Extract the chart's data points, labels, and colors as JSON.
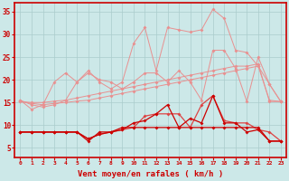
{
  "x": [
    0,
    1,
    2,
    3,
    4,
    5,
    6,
    7,
    8,
    9,
    10,
    11,
    12,
    13,
    14,
    15,
    16,
    17,
    18,
    19,
    20,
    21,
    22,
    23
  ],
  "line_top": [
    15.5,
    13.5,
    14.5,
    19.5,
    21.5,
    19.5,
    22.0,
    19.5,
    18.0,
    19.5,
    28.0,
    31.5,
    22.0,
    31.5,
    31.0,
    30.5,
    31.0,
    35.5,
    33.5,
    26.5,
    26.0,
    23.0,
    19.0,
    15.2
  ],
  "line_mid": [
    15.5,
    14.5,
    14.0,
    14.5,
    15.5,
    19.5,
    21.5,
    20.0,
    19.5,
    18.0,
    19.5,
    21.5,
    21.5,
    19.5,
    22.0,
    19.5,
    15.5,
    26.5,
    26.5,
    22.5,
    15.2,
    25.0,
    19.0,
    15.2
  ],
  "line_diag1": [
    15.2,
    15.0,
    15.0,
    15.3,
    15.5,
    16.0,
    16.5,
    17.0,
    17.5,
    18.0,
    18.5,
    19.0,
    19.5,
    20.0,
    20.5,
    21.0,
    21.5,
    22.0,
    22.5,
    23.0,
    23.0,
    23.5,
    15.2,
    15.2
  ],
  "line_diag2": [
    15.2,
    14.8,
    14.5,
    14.8,
    15.0,
    15.3,
    15.5,
    16.0,
    16.5,
    17.0,
    17.5,
    18.0,
    18.5,
    19.0,
    19.5,
    20.0,
    20.5,
    21.0,
    21.5,
    22.0,
    22.5,
    23.0,
    15.5,
    15.2
  ],
  "line_dark1": [
    8.5,
    8.5,
    8.5,
    8.5,
    8.5,
    8.5,
    7.0,
    8.0,
    8.5,
    9.0,
    9.5,
    12.0,
    12.5,
    12.5,
    12.5,
    9.5,
    14.5,
    16.5,
    11.0,
    10.5,
    10.5,
    9.0,
    8.5,
    6.5
  ],
  "line_dark2": [
    8.5,
    8.5,
    8.5,
    8.5,
    8.5,
    8.5,
    7.0,
    8.0,
    8.5,
    9.0,
    10.5,
    11.0,
    12.5,
    14.5,
    9.5,
    11.5,
    10.5,
    16.5,
    10.5,
    10.5,
    8.5,
    9.0,
    6.5,
    6.5
  ],
  "line_flat": [
    8.5,
    8.5,
    8.5,
    8.5,
    8.5,
    8.5,
    6.5,
    8.5,
    8.5,
    9.5,
    9.5,
    9.5,
    9.5,
    9.5,
    9.5,
    9.5,
    9.5,
    9.5,
    9.5,
    9.5,
    9.5,
    9.5,
    6.5,
    6.5
  ],
  "xlabel": "Vent moyen/en rafales ( km/h )",
  "ylim": [
    3,
    37
  ],
  "yticks": [
    5,
    10,
    15,
    20,
    25,
    30,
    35
  ],
  "xlim": [
    -0.5,
    23.5
  ],
  "bg_color": "#cce8e8",
  "grid_color": "#aacccc",
  "light_red": "#e89090",
  "dark_red": "#cc0000",
  "medium_red": "#dd4444"
}
